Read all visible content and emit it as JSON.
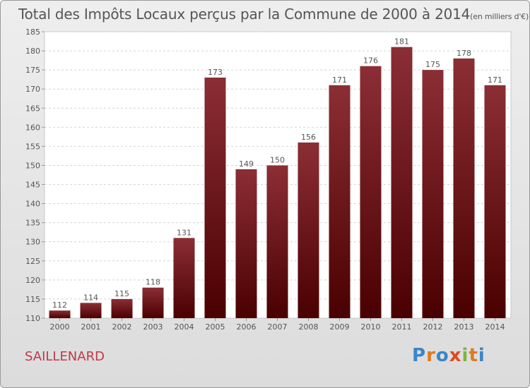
{
  "chart_data": {
    "type": "bar",
    "title": "Total des Impôts Locaux perçus par la Commune de 2000 à 2014",
    "unit_note": "(en milliers d'€)",
    "categories": [
      "2000",
      "2001",
      "2002",
      "2003",
      "2004",
      "2005",
      "2006",
      "2007",
      "2008",
      "2009",
      "2010",
      "2011",
      "2012",
      "2013",
      "2014"
    ],
    "values": [
      112,
      114,
      115,
      118,
      131,
      173,
      149,
      150,
      156,
      171,
      176,
      181,
      175,
      178,
      171
    ],
    "ylim": [
      110,
      185
    ],
    "yticks": [
      110,
      115,
      120,
      125,
      130,
      135,
      140,
      145,
      150,
      155,
      160,
      165,
      170,
      175,
      180,
      185
    ],
    "xlabel": "",
    "ylabel": "",
    "grid": "horizontal-dashed",
    "bar_color_top": "#8b2e35",
    "bar_color_bottom": "#4a0000"
  },
  "footer": {
    "commune": "SAILLENARD",
    "logo_letters": [
      "P",
      "r",
      "o",
      "x",
      "i",
      "t",
      "i"
    ],
    "logo_colors": [
      "#3a86c8",
      "#e07a1f",
      "#3a86c8",
      "#e04a1f",
      "#7ab640",
      "#e07a1f",
      "#3a86c8"
    ]
  }
}
